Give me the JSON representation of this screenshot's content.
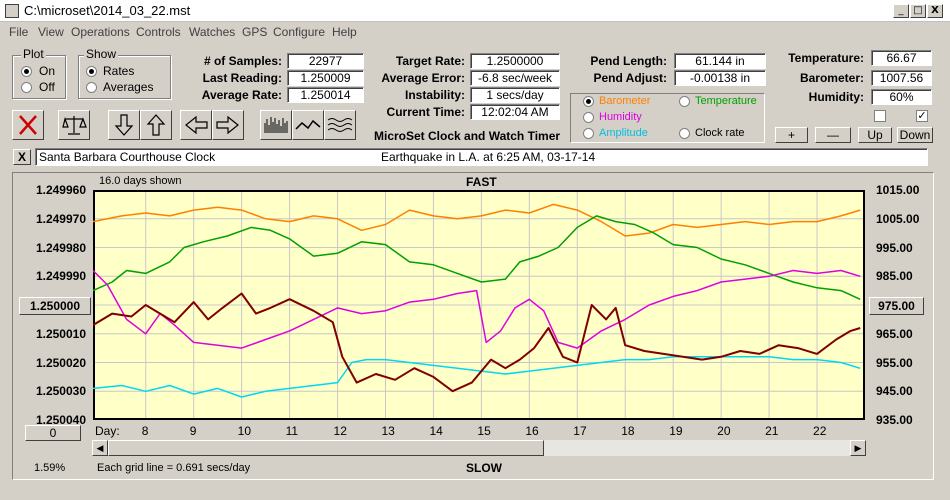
{
  "window": {
    "title": "C:\\microset\\2014_03_22.mst",
    "minimize": "_",
    "maximize": "□",
    "close": "X"
  },
  "menu": [
    "File",
    "View",
    "Operations",
    "Controls",
    "Watches",
    "GPS",
    "Configure",
    "Help"
  ],
  "plot_group": {
    "title": "Plot",
    "options": [
      "On",
      "Off"
    ],
    "selected": "On"
  },
  "show_group": {
    "title": "Show",
    "options": [
      "Rates",
      "Averages"
    ],
    "selected": "Rates"
  },
  "stats": [
    {
      "label": "# of Samples:",
      "value": "22977"
    },
    {
      "label": "Last Reading:",
      "value": "1.250009"
    },
    {
      "label": "Average Rate:",
      "value": "1.250014"
    }
  ],
  "rate_stats": [
    {
      "label": "Target Rate:",
      "value": "1.2500000"
    },
    {
      "label": "Average Error:",
      "value": "-6.8 sec/week"
    },
    {
      "label": "Instability:",
      "value": "1 secs/day"
    },
    {
      "label": "Current Time:",
      "value": "12:02:04 AM"
    }
  ],
  "pend": [
    {
      "label": "Pend Length:",
      "value": "61.144 in"
    },
    {
      "label": "Pend Adjust:",
      "value": "-0.00138 in"
    }
  ],
  "env": [
    {
      "label": "Temperature:",
      "value": "66.67"
    },
    {
      "label": "Barometer:",
      "value": "1007.56"
    },
    {
      "label": "Humidity:",
      "value": "60%"
    }
  ],
  "env_checks": [
    "unchecked",
    "checked"
  ],
  "sensor_radio": [
    {
      "label": "Barometer",
      "color": "#ff8000",
      "selected": true
    },
    {
      "label": "Temperature",
      "color": "#00a000",
      "selected": false
    },
    {
      "label": "Humidity",
      "color": "#e000e0",
      "selected": false
    },
    {
      "label": "Amplitude",
      "color": "#00c0e0",
      "selected": false
    },
    {
      "label": "Clock rate",
      "color": "#000000",
      "selected": false
    }
  ],
  "app_title": "MicroSet Clock and Watch Timer",
  "step_buttons": [
    "+",
    "—",
    "Up",
    "Down"
  ],
  "note_close": "X",
  "note_clock": "Santa Barbara Courthouse Clock",
  "note_event": "Earthquake in L.A. at 6:25 AM, 03-17-14",
  "plot": {
    "days_shown": "16.0 days shown",
    "fast_label": "FAST",
    "slow_label": "SLOW",
    "grid_note": "Each grid line = 0.691 secs/day",
    "percent": "1.59%",
    "day_prefix": "Day:",
    "left_button": "1.250000",
    "right_button": "975.00",
    "zero_button": "0"
  },
  "chart_data": {
    "type": "line",
    "x_label": "Day:",
    "x_ticks": [
      "8",
      "9",
      "10",
      "11",
      "12",
      "13",
      "14",
      "15",
      "16",
      "17",
      "18",
      "19",
      "20",
      "21",
      "22"
    ],
    "y_left_ticks": [
      "1.249960",
      "1.249970",
      "1.249980",
      "1.249990",
      "",
      "1.250010",
      "1.250020",
      "1.250030",
      "1.250040"
    ],
    "y_right_ticks": [
      "1015.00",
      "1005.00",
      "995.00",
      "985.00",
      "",
      "965.00",
      "955.00",
      "945.00",
      "935.00"
    ],
    "x_range": [
      6.9,
      23.0
    ],
    "y_left_range": [
      1.24996,
      1.25004
    ],
    "y_right_range": [
      935,
      1015
    ],
    "grid": true,
    "series": [
      {
        "name": "Barometer",
        "color": "#ff8000",
        "axis": "right",
        "points": [
          [
            6.9,
            1004
          ],
          [
            7.5,
            1006
          ],
          [
            8.0,
            1007
          ],
          [
            8.5,
            1006
          ],
          [
            9.0,
            1008
          ],
          [
            9.5,
            1009
          ],
          [
            10.0,
            1008
          ],
          [
            10.5,
            1005
          ],
          [
            11.0,
            1004
          ],
          [
            11.5,
            1006
          ],
          [
            12.0,
            1005
          ],
          [
            12.5,
            1001
          ],
          [
            13.0,
            1003
          ],
          [
            13.5,
            1008
          ],
          [
            14.0,
            1006
          ],
          [
            14.5,
            1005
          ],
          [
            15.0,
            1006
          ],
          [
            15.5,
            1008
          ],
          [
            16.0,
            1007
          ],
          [
            16.5,
            1010
          ],
          [
            17.0,
            1008
          ],
          [
            17.5,
            1004
          ],
          [
            18.0,
            999
          ],
          [
            18.5,
            1000
          ],
          [
            19.0,
            1003
          ],
          [
            19.5,
            1002
          ],
          [
            20.0,
            1003
          ],
          [
            20.5,
            1004
          ],
          [
            21.0,
            1003
          ],
          [
            21.5,
            1004
          ],
          [
            22.0,
            1004
          ],
          [
            22.5,
            1006
          ],
          [
            22.9,
            1008
          ]
        ]
      },
      {
        "name": "Temperature",
        "color": "#00a000",
        "axis": "right",
        "points": [
          [
            6.9,
            980
          ],
          [
            7.3,
            983
          ],
          [
            7.6,
            987
          ],
          [
            8.0,
            986
          ],
          [
            8.5,
            990
          ],
          [
            8.8,
            995
          ],
          [
            9.2,
            997
          ],
          [
            9.7,
            999
          ],
          [
            10.2,
            1002
          ],
          [
            10.6,
            1001
          ],
          [
            11.0,
            998
          ],
          [
            11.5,
            992
          ],
          [
            12.0,
            993
          ],
          [
            12.5,
            997
          ],
          [
            13.0,
            996
          ],
          [
            13.5,
            990
          ],
          [
            14.0,
            989
          ],
          [
            14.5,
            986
          ],
          [
            15.0,
            983
          ],
          [
            15.5,
            984
          ],
          [
            15.8,
            990
          ],
          [
            16.2,
            992
          ],
          [
            16.6,
            995
          ],
          [
            17.0,
            1002
          ],
          [
            17.4,
            1006
          ],
          [
            17.8,
            1004
          ],
          [
            18.2,
            1003
          ],
          [
            18.6,
            1000
          ],
          [
            19.0,
            996
          ],
          [
            19.5,
            995
          ],
          [
            20.0,
            991
          ],
          [
            20.5,
            989
          ],
          [
            21.0,
            986
          ],
          [
            21.5,
            983
          ],
          [
            22.0,
            981
          ],
          [
            22.5,
            980
          ],
          [
            22.9,
            977
          ]
        ]
      },
      {
        "name": "Humidity",
        "color": "#e000e0",
        "axis": "right",
        "points": [
          [
            6.9,
            987
          ],
          [
            7.2,
            982
          ],
          [
            7.6,
            970
          ],
          [
            8.0,
            965
          ],
          [
            8.3,
            972
          ],
          [
            8.6,
            968
          ],
          [
            9.0,
            962
          ],
          [
            9.5,
            961
          ],
          [
            10.0,
            960
          ],
          [
            10.5,
            963
          ],
          [
            11.0,
            966
          ],
          [
            11.5,
            970
          ],
          [
            12.0,
            974
          ],
          [
            12.5,
            972
          ],
          [
            13.0,
            973
          ],
          [
            13.5,
            976
          ],
          [
            14.0,
            977
          ],
          [
            14.5,
            979
          ],
          [
            14.9,
            980
          ],
          [
            15.1,
            962
          ],
          [
            15.4,
            966
          ],
          [
            15.7,
            974
          ],
          [
            16.0,
            977
          ],
          [
            16.3,
            973
          ],
          [
            16.6,
            962
          ],
          [
            17.0,
            960
          ],
          [
            17.5,
            966
          ],
          [
            18.0,
            970
          ],
          [
            18.5,
            975
          ],
          [
            19.0,
            978
          ],
          [
            19.5,
            980
          ],
          [
            20.0,
            983
          ],
          [
            20.5,
            984
          ],
          [
            21.0,
            985
          ],
          [
            21.5,
            987
          ],
          [
            22.0,
            986
          ],
          [
            22.5,
            987
          ],
          [
            22.9,
            985
          ]
        ]
      },
      {
        "name": "Amplitude",
        "color": "#00d8f0",
        "axis": "right",
        "points": [
          [
            6.9,
            946
          ],
          [
            7.5,
            947
          ],
          [
            8.0,
            945
          ],
          [
            8.5,
            947
          ],
          [
            9.0,
            944
          ],
          [
            9.5,
            946
          ],
          [
            10.0,
            943
          ],
          [
            10.5,
            945
          ],
          [
            11.0,
            946
          ],
          [
            11.5,
            947
          ],
          [
            12.0,
            948
          ],
          [
            12.3,
            955
          ],
          [
            12.6,
            956
          ],
          [
            13.0,
            956
          ],
          [
            13.5,
            955
          ],
          [
            14.0,
            954
          ],
          [
            14.5,
            953
          ],
          [
            15.0,
            952
          ],
          [
            15.5,
            951
          ],
          [
            16.0,
            952
          ],
          [
            16.5,
            953
          ],
          [
            17.0,
            954
          ],
          [
            17.5,
            955
          ],
          [
            18.0,
            956
          ],
          [
            18.5,
            956
          ],
          [
            19.0,
            957
          ],
          [
            19.5,
            957
          ],
          [
            20.0,
            957
          ],
          [
            20.5,
            957
          ],
          [
            21.0,
            957
          ],
          [
            21.5,
            956
          ],
          [
            22.0,
            956
          ],
          [
            22.5,
            955
          ],
          [
            22.9,
            953
          ]
        ]
      },
      {
        "name": "Clock rate",
        "color": "#800000",
        "axis": "left",
        "points": [
          [
            6.9,
            1.250007
          ],
          [
            7.3,
            1.250003
          ],
          [
            7.7,
            1.250004
          ],
          [
            8.0,
            1.25
          ],
          [
            8.3,
            1.250003
          ],
          [
            8.6,
            1.250006
          ],
          [
            9.0,
            1.249999
          ],
          [
            9.3,
            1.250005
          ],
          [
            9.6,
            1.250001
          ],
          [
            10.0,
            1.249996
          ],
          [
            10.3,
            1.250003
          ],
          [
            10.6,
            1.250001
          ],
          [
            11.0,
            1.249998
          ],
          [
            11.5,
            1.250002
          ],
          [
            11.9,
            1.250006
          ],
          [
            12.1,
            1.250018
          ],
          [
            12.4,
            1.250027
          ],
          [
            12.8,
            1.250024
          ],
          [
            13.2,
            1.250026
          ],
          [
            13.6,
            1.250022
          ],
          [
            14.0,
            1.250025
          ],
          [
            14.4,
            1.25003
          ],
          [
            14.8,
            1.250027
          ],
          [
            15.2,
            1.250019
          ],
          [
            15.5,
            1.250022
          ],
          [
            15.8,
            1.250019
          ],
          [
            16.1,
            1.250015
          ],
          [
            16.4,
            1.250008
          ],
          [
            16.7,
            1.250018
          ],
          [
            17.0,
            1.25002
          ],
          [
            17.3,
            1.25
          ],
          [
            17.6,
            1.250005
          ],
          [
            17.8,
            1.250001
          ],
          [
            18.0,
            1.250014
          ],
          [
            18.4,
            1.250016
          ],
          [
            18.8,
            1.250017
          ],
          [
            19.2,
            1.250018
          ],
          [
            19.6,
            1.250019
          ],
          [
            20.0,
            1.250018
          ],
          [
            20.4,
            1.250016
          ],
          [
            20.8,
            1.250017
          ],
          [
            21.2,
            1.250014
          ],
          [
            21.6,
            1.250015
          ],
          [
            22.0,
            1.250017
          ],
          [
            22.4,
            1.250012
          ],
          [
            22.7,
            1.250009
          ],
          [
            22.9,
            1.250008
          ]
        ]
      }
    ]
  }
}
